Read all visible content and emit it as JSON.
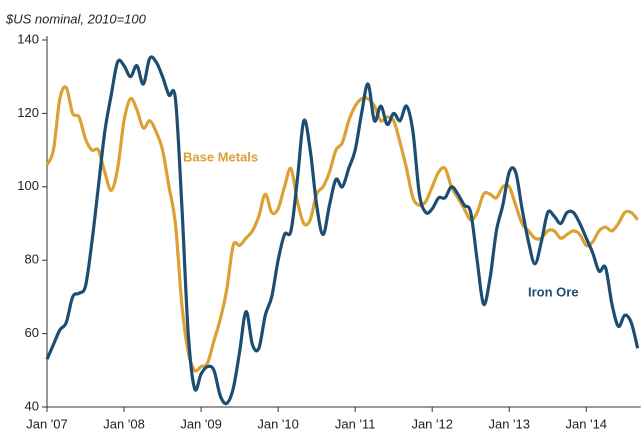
{
  "chart_data": {
    "type": "line",
    "subtitle": "$US nominal, 2010=100",
    "categories": [
      "Jan '07",
      null,
      null,
      null,
      null,
      null,
      null,
      null,
      null,
      null,
      null,
      null,
      "Jan '08",
      null,
      null,
      null,
      null,
      null,
      null,
      null,
      null,
      null,
      null,
      null,
      "Jan '09",
      null,
      null,
      null,
      null,
      null,
      null,
      null,
      null,
      null,
      null,
      null,
      "Jan '10",
      null,
      null,
      null,
      null,
      null,
      null,
      null,
      null,
      null,
      null,
      null,
      "Jan '11",
      null,
      null,
      null,
      null,
      null,
      null,
      null,
      null,
      null,
      null,
      null,
      "Jan '12",
      null,
      null,
      null,
      null,
      null,
      null,
      null,
      null,
      null,
      null,
      null,
      "Jan '13",
      null,
      null,
      null,
      null,
      null,
      null,
      null,
      null,
      null,
      null,
      null,
      "Jan '14",
      null,
      null,
      null,
      null,
      null,
      null,
      null,
      null
    ],
    "series": [
      {
        "name": "Base Metals",
        "color": "#dca035",
        "values": [
          106,
          110,
          124,
          127,
          120,
          119,
          113,
          110,
          110,
          104,
          99,
          105,
          118,
          124,
          121,
          116,
          118,
          115,
          110,
          100,
          90,
          68,
          55,
          50,
          51,
          52,
          58,
          64,
          72,
          84,
          84,
          86,
          88,
          92,
          98,
          93,
          94,
          100,
          105,
          96,
          90,
          91,
          98,
          100,
          104,
          110,
          112,
          118,
          122,
          124,
          124,
          122,
          118,
          119,
          118,
          112,
          105,
          97,
          95,
          96,
          100,
          104,
          105,
          100,
          97,
          94,
          91,
          93,
          98,
          98,
          97,
          100,
          100,
          95,
          90,
          88,
          86,
          86,
          88,
          88,
          86,
          87,
          88,
          87,
          84,
          85,
          88,
          89,
          88,
          90,
          93,
          93,
          91
        ]
      },
      {
        "name": "Iron Ore",
        "color": "#1d4e72",
        "values": [
          53,
          57,
          61,
          63,
          70,
          71,
          73,
          85,
          100,
          115,
          125,
          134,
          133,
          130,
          133,
          128,
          135,
          134,
          130,
          125,
          124,
          95,
          60,
          45,
          49,
          51,
          50,
          43,
          41,
          45,
          55,
          66,
          57,
          56,
          65,
          70,
          80,
          87,
          88,
          102,
          118,
          110,
          95,
          87,
          95,
          102,
          100,
          105,
          110,
          120,
          128,
          118,
          122,
          117,
          120,
          118,
          122,
          115,
          98,
          93,
          94,
          97,
          97,
          100,
          98,
          95,
          93,
          80,
          68,
          75,
          88,
          95,
          104,
          104,
          94,
          85,
          79,
          85,
          93,
          92,
          90,
          93,
          93,
          90,
          86,
          82,
          77,
          78,
          68,
          62,
          65,
          63,
          56
        ]
      }
    ],
    "ylim": [
      40,
      140
    ],
    "yticks": [
      40,
      60,
      80,
      100,
      120,
      140
    ]
  }
}
